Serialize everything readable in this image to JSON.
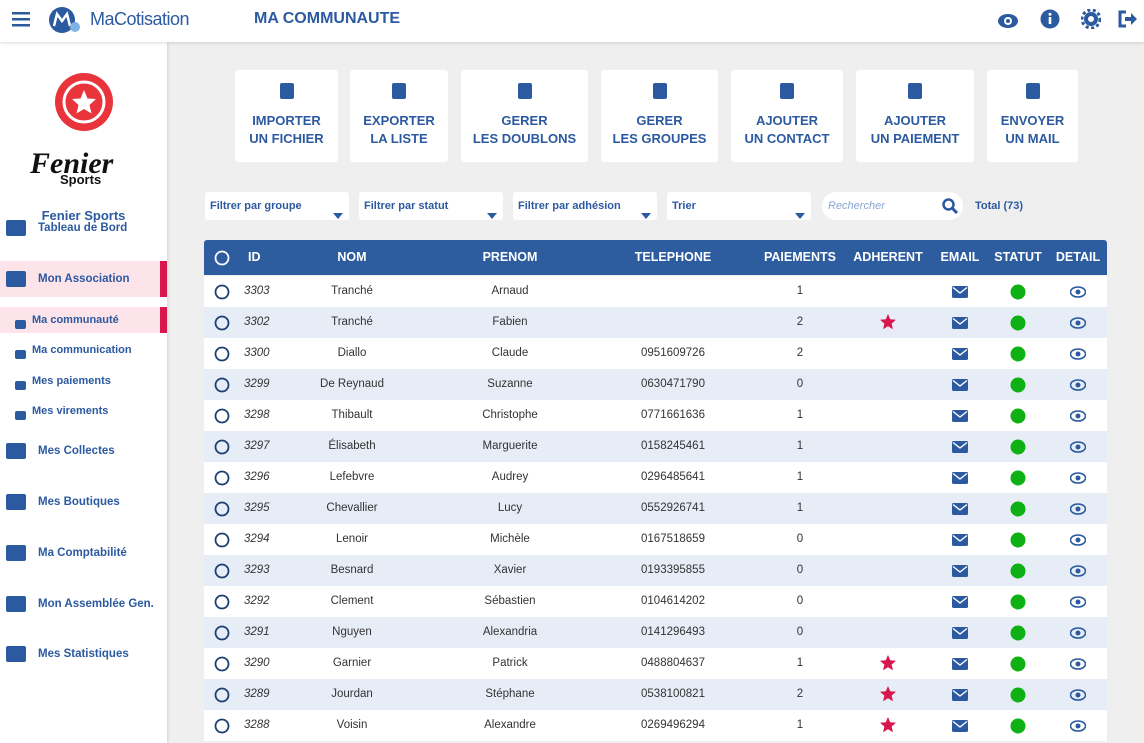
{
  "header": {
    "brand": "MaCotisation",
    "title": "MA COMMUNAUTE"
  },
  "sidebar": {
    "club_logo": "Fenier",
    "club_logo_sub": "Sports",
    "club_name": "Fenier Sports",
    "menu": [
      {
        "label": "Tableau de Bord",
        "level": 1,
        "active": false
      },
      {
        "label": "Mon Association",
        "level": 1,
        "active": true
      },
      {
        "label": "Ma communauté",
        "level": 2,
        "active": true
      },
      {
        "label": "Ma communication",
        "level": 2,
        "active": false
      },
      {
        "label": "Mes paiements",
        "level": 2,
        "active": false
      },
      {
        "label": "Mes virements",
        "level": 2,
        "active": false
      },
      {
        "label": "Mes Collectes",
        "level": 1,
        "active": false
      },
      {
        "label": "Mes Boutiques",
        "level": 1,
        "active": false
      },
      {
        "label": "Ma Comptabilité",
        "level": 1,
        "active": false
      },
      {
        "label": "Mon Assemblée Gen.",
        "level": 1,
        "active": false
      },
      {
        "label": "Mes Statistiques",
        "level": 1,
        "active": false
      }
    ]
  },
  "actions": [
    {
      "lines": [
        "IMPORTER",
        "UN FICHIER"
      ]
    },
    {
      "lines": [
        "EXPORTER",
        "LA LISTE"
      ]
    },
    {
      "lines": [
        "GERER",
        "LES DOUBLONS"
      ]
    },
    {
      "lines": [
        "GERER",
        "LES GROUPES"
      ]
    },
    {
      "lines": [
        "AJOUTER",
        "UN CONTACT"
      ]
    },
    {
      "lines": [
        "AJOUTER",
        "UN PAIEMENT"
      ]
    },
    {
      "lines": [
        "ENVOYER",
        "UN MAIL"
      ]
    }
  ],
  "filters": {
    "selects": [
      "Filtrer par groupe",
      "Filtrer par statut",
      "Filtrer par adhésion",
      "Trier"
    ],
    "search_placeholder": "Rechercher",
    "total": "Total (73)"
  },
  "table": {
    "columns": [
      "ID",
      "NOM",
      "PRENOM",
      "TELEPHONE",
      "PAIEMENTS",
      "ADHERENT",
      "EMAIL",
      "STATUT",
      "DETAIL"
    ],
    "rows": [
      {
        "id": 3303,
        "nom": "Tranché",
        "prenom": "Arnaud",
        "telephone": null,
        "paiements": 1,
        "adherent": false
      },
      {
        "id": 3302,
        "nom": "Tranché",
        "prenom": "Fabien",
        "telephone": null,
        "paiements": 2,
        "adherent": true
      },
      {
        "id": 3300,
        "nom": "Diallo",
        "prenom": "Claude",
        "telephone": "0951609726",
        "paiements": 2,
        "adherent": false
      },
      {
        "id": 3299,
        "nom": "De Reynaud",
        "prenom": "Suzanne",
        "telephone": "0630471790",
        "paiements": 0,
        "adherent": false
      },
      {
        "id": 3298,
        "nom": "Thibault",
        "prenom": "Christophe",
        "telephone": "0771661636",
        "paiements": 1,
        "adherent": false
      },
      {
        "id": 3297,
        "nom": "Élisabeth",
        "prenom": "Marguerite",
        "telephone": "0158245461",
        "paiements": 1,
        "adherent": false
      },
      {
        "id": 3296,
        "nom": "Lefebvre",
        "prenom": "Audrey",
        "telephone": "0296485641",
        "paiements": 1,
        "adherent": false
      },
      {
        "id": 3295,
        "nom": "Chevallier",
        "prenom": "Lucy",
        "telephone": "0552926741",
        "paiements": 1,
        "adherent": false
      },
      {
        "id": 3294,
        "nom": "Lenoir",
        "prenom": "Michèle",
        "telephone": "0167518659",
        "paiements": 0,
        "adherent": false
      },
      {
        "id": 3293,
        "nom": "Besnard",
        "prenom": "Xavier",
        "telephone": "0193395855",
        "paiements": 0,
        "adherent": false
      },
      {
        "id": 3292,
        "nom": "Clement",
        "prenom": "Sébastien",
        "telephone": "0104614202",
        "paiements": 0,
        "adherent": false
      },
      {
        "id": 3291,
        "nom": "Nguyen",
        "prenom": "Alexandria",
        "telephone": "0141296493",
        "paiements": 0,
        "adherent": false
      },
      {
        "id": 3290,
        "nom": "Garnier",
        "prenom": "Patrick",
        "telephone": "0488804637",
        "paiements": 1,
        "adherent": true
      },
      {
        "id": 3289,
        "nom": "Jourdan",
        "prenom": "Stéphane",
        "telephone": "0538100821",
        "paiements": 2,
        "adherent": true
      },
      {
        "id": 3288,
        "nom": "Voisin",
        "prenom": "Alexandre",
        "telephone": "0269496294",
        "paiements": 1,
        "adherent": true
      }
    ]
  }
}
